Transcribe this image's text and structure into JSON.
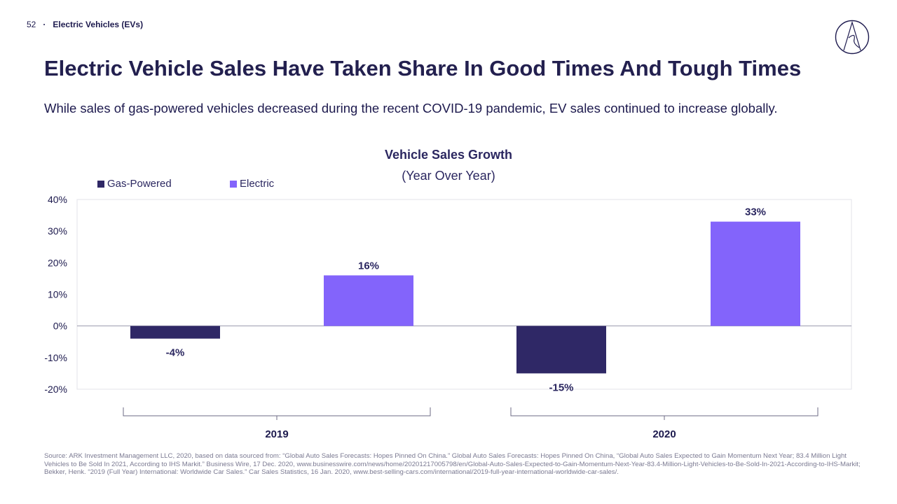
{
  "header": {
    "page_number": "52",
    "section": "Electric Vehicles (EVs)"
  },
  "title": "Electric Vehicle Sales Have Taken Share In Good Times And Tough Times",
  "subtitle": "While sales of gas-powered vehicles decreased during the recent COVID-19 pandemic, EV sales continued to increase globally.",
  "colors": {
    "gas": "#2f2866",
    "electric": "#8364fb",
    "text": "#1d1a4e"
  },
  "chart_data": {
    "type": "bar",
    "title": "Vehicle Sales Growth",
    "subtitle": "(Year Over Year)",
    "categories": [
      "2019",
      "2020"
    ],
    "series": [
      {
        "name": "Gas-Powered",
        "values": [
          -4,
          -15
        ],
        "labels": [
          "-4%",
          "-15%"
        ]
      },
      {
        "name": "Electric",
        "values": [
          16,
          33
        ],
        "labels": [
          "16%",
          "33%"
        ]
      }
    ],
    "ylim": [
      -20,
      40
    ],
    "yticks": [
      40,
      30,
      20,
      10,
      0,
      -10,
      -20
    ],
    "ytick_labels": [
      "40%",
      "30%",
      "20%",
      "10%",
      "0%",
      "-10%",
      "-20%"
    ],
    "xlabel": "",
    "ylabel": "",
    "grid": false,
    "legend_position": "top-left"
  },
  "source": "Source: ARK Investment Management LLC, 2020, based on data sourced from: “Global Auto Sales Forecasts: Hopes Pinned On China.” Global Auto Sales Forecasts: Hopes Pinned On China, “Global Auto Sales Expected to Gain Momentum Next Year; 83.4 Million Light Vehicles to Be Sold In 2021, According to IHS Markit.” Business Wire, 17 Dec. 2020, www.businesswire.com/news/home/20201217005798/en/Global-Auto-Sales-Expected-to-Gain-Momentum-Next-Year-83.4-Million-Light-Vehicles-to-Be-Sold-In-2021-According-to-IHS-Markit; Bekker, Henk. “2019 (Full Year) International: Worldwide Car Sales.” Car Sales Statistics, 16 Jan. 2020, www.best-selling-cars.com/international/2019-full-year-international-worldwide-car-sales/."
}
